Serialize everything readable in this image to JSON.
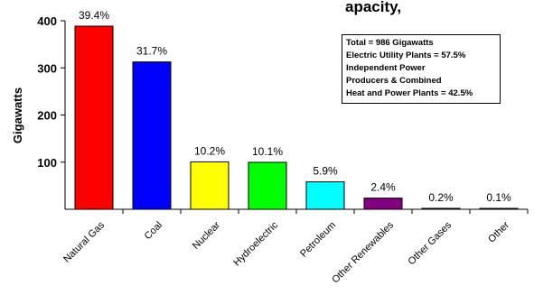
{
  "chart_data": {
    "type": "bar",
    "title_visible_fragment": "apacity,",
    "ylabel": "Gigawatts",
    "ylim": [
      0,
      400
    ],
    "yticks": [
      100,
      200,
      300,
      400
    ],
    "grid": false,
    "categories": [
      "Natural Gas",
      "Coal",
      "Nuclear",
      "Hydroelectric",
      "Petroleum",
      "Other Renewables",
      "Other Gases",
      "Other"
    ],
    "values": [
      388.5,
      312.6,
      100.6,
      99.6,
      58.2,
      23.7,
      2.0,
      1.0
    ],
    "data_labels": [
      "39.4%",
      "31.7%",
      "10.2%",
      "10.1%",
      "5.9%",
      "2.4%",
      "0.2%",
      "0.1%"
    ],
    "colors": [
      "#ff0000",
      "#0000ff",
      "#ffff00",
      "#00ff00",
      "#00ffff",
      "#800080",
      "#000000",
      "#000000"
    ],
    "annotation_lines": [
      "Total = 986 Gigawatts",
      "Electric Utility Plants = 57.5%",
      "Independent Power",
      "Producers & Combined",
      "Heat and Power Plants = 42.5%"
    ],
    "annotation_placement": "top-right"
  }
}
